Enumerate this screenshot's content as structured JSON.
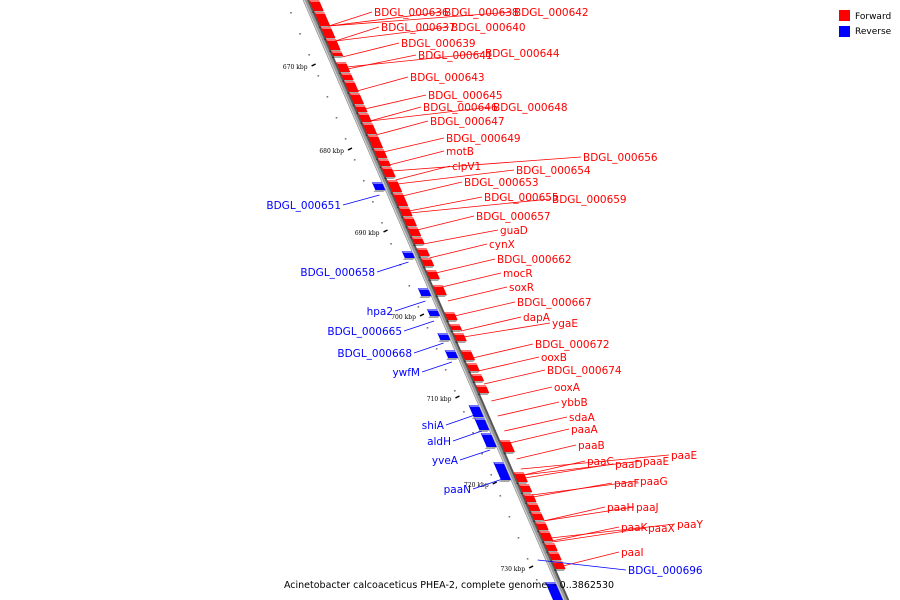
{
  "caption": "Acinetobacter calcoaceticus PHEA-2, complete genome. - 0..3862530",
  "legend": [
    {
      "label": "Forward",
      "color": "#ff0000"
    },
    {
      "label": "Reverse",
      "color": "#0000ff"
    }
  ],
  "colors": {
    "forward": "#ff0000",
    "reverse": "#0000ff",
    "backbone": "#9a9a9a"
  },
  "ticks": [
    "670 kbp",
    "680 kbp",
    "690 kbp",
    "700 kbp",
    "710 kbp",
    "720 kbp",
    "730 kbp"
  ],
  "forward_genes": [
    "BDGL_000636",
    "BDGL_000638",
    "BDGL_000642",
    "BDGL_000637",
    "BDGL_000640",
    "BDGL_000639",
    "BDGL_000641",
    "BDGL_000644",
    "BDGL_000643",
    "BDGL_000645",
    "BDGL_000646",
    "BDGL_000648",
    "BDGL_000647",
    "BDGL_000649",
    "motB",
    "clpV1",
    "BDGL_000656",
    "BDGL_000654",
    "BDGL_000653",
    "BDGL_000655",
    "BDGL_000659",
    "BDGL_000657",
    "guaD",
    "cynX",
    "BDGL_000662",
    "mocR",
    "soxR",
    "BDGL_000667",
    "dapA",
    "ygaE",
    "BDGL_000672",
    "ooxB",
    "BDGL_000674",
    "ooxA",
    "ybbB",
    "sdaA",
    "paaA",
    "paaB",
    "paaC",
    "paaD",
    "paaE",
    "paaE",
    "paaF",
    "paaG",
    "paaH",
    "paaJ",
    "paaK",
    "paaX",
    "paaY",
    "paaI"
  ],
  "reverse_genes": [
    "BDGL_000651",
    "BDGL_000658",
    "hpa2",
    "BDGL_000665",
    "BDGL_000668",
    "ywfM",
    "shiA",
    "aldH",
    "yveA",
    "paaN",
    "BDGL_000696"
  ]
}
